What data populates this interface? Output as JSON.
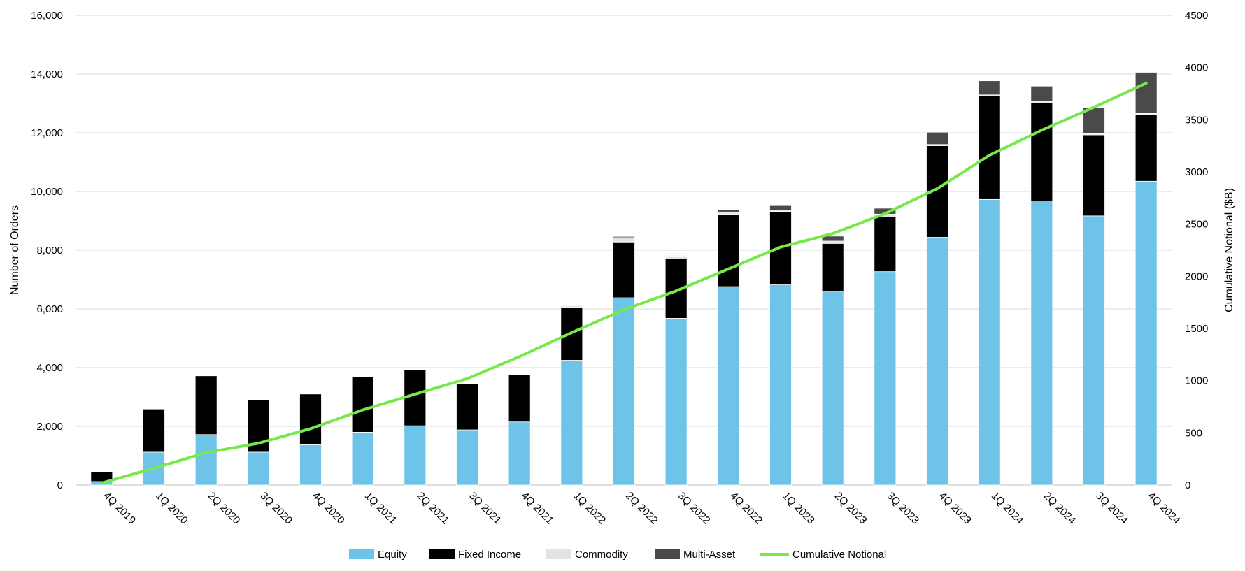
{
  "chart_data": {
    "type": "bar",
    "stacked": true,
    "title": "",
    "xlabel": "",
    "ylabel": "Number of Orders",
    "y2label": "Cumulative Notional ($B)",
    "ylim": [
      0,
      16000
    ],
    "y2lim": [
      0,
      4500
    ],
    "yticks": [
      "0",
      "2,000",
      "4,000",
      "6,000",
      "8,000",
      "10,000",
      "12,000",
      "14,000",
      "16,000"
    ],
    "y2ticks": [
      "0",
      "500",
      "1000",
      "1500",
      "2000",
      "2500",
      "3000",
      "3500",
      "4000",
      "4500"
    ],
    "grid": true,
    "legend_position": "bottom",
    "categories": [
      "4Q 2019",
      "1Q 2020",
      "2Q 2020",
      "3Q 2020",
      "4Q 2020",
      "1Q 2021",
      "2Q 2021",
      "3Q 2021",
      "4Q 2021",
      "1Q 2022",
      "2Q 2022",
      "3Q 2022",
      "4Q 2022",
      "1Q 2023",
      "2Q 2023",
      "3Q 2023",
      "4Q 2023",
      "1Q 2024",
      "2Q 2024",
      "3Q 2024",
      "4Q 2024"
    ],
    "series": [
      {
        "name": "Equity",
        "type": "bar",
        "axis": "left",
        "color": "#6EC3E8",
        "values": [
          120,
          1120,
          1720,
          1120,
          1370,
          1800,
          2020,
          1880,
          2150,
          4250,
          6380,
          5680,
          6760,
          6820,
          6580,
          7270,
          8440,
          9730,
          9680,
          9170,
          10350
        ]
      },
      {
        "name": "Fixed Income",
        "type": "bar",
        "axis": "left",
        "color": "#000000",
        "values": [
          330,
          1470,
          2000,
          1780,
          1730,
          1880,
          1900,
          1570,
          1620,
          1800,
          1900,
          2020,
          2460,
          2500,
          1650,
          1860,
          3120,
          3520,
          3340,
          2760,
          2270
        ]
      },
      {
        "name": "Commodity",
        "type": "bar",
        "axis": "left",
        "color": "#E3E3E3",
        "values": [
          0,
          0,
          0,
          0,
          0,
          0,
          0,
          0,
          0,
          60,
          150,
          80,
          70,
          50,
          80,
          100,
          40,
          40,
          40,
          40,
          40
        ]
      },
      {
        "name": "Multi-Asset",
        "type": "bar",
        "axis": "left",
        "color": "#4A4A4A",
        "values": [
          0,
          0,
          0,
          0,
          0,
          0,
          0,
          0,
          0,
          0,
          40,
          40,
          90,
          150,
          170,
          200,
          420,
          480,
          530,
          890,
          1400
        ]
      },
      {
        "name": "Cumulative Notional",
        "type": "line",
        "axis": "right",
        "color": "#77E84A",
        "values": [
          20,
          160,
          310,
          400,
          540,
          720,
          870,
          1020,
          1230,
          1460,
          1680,
          1860,
          2070,
          2280,
          2410,
          2600,
          2840,
          3160,
          3400,
          3620,
          3850
        ]
      }
    ]
  }
}
